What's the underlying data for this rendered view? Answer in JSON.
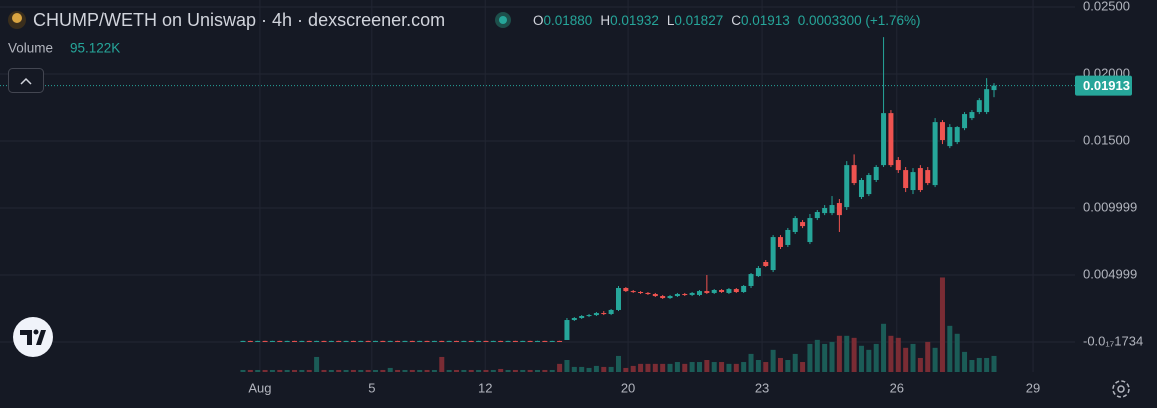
{
  "chart_data": {
    "type": "candlestick",
    "title": "CHUMP/WETH on Uniswap · 4h · dexscreener.com",
    "legend_ohlc": [
      {
        "label": "O",
        "value": "0.01880"
      },
      {
        "label": "H",
        "value": "0.01932"
      },
      {
        "label": "L",
        "value": "0.01827"
      },
      {
        "label": "C",
        "value": "0.01913"
      }
    ],
    "change": "0.0003300 (+1.76%)",
    "volume_label": "Volume",
    "volume_value": "95.122K",
    "up_color": "#26a69a",
    "down_color": "#ef5350",
    "volume_up_color": "#1b5c57",
    "volume_down_color": "#7a2c34",
    "grid": true,
    "x": [
      0,
      1,
      2,
      3,
      4,
      5,
      6,
      7,
      8,
      9,
      10,
      11,
      12,
      13,
      14,
      15,
      16,
      17,
      18,
      19,
      20,
      21,
      22,
      23,
      24,
      25,
      26,
      27,
      28,
      29,
      30,
      31,
      32,
      33,
      34,
      35,
      36,
      37,
      38,
      39,
      40,
      41,
      42,
      43,
      44,
      45,
      46,
      47,
      48,
      49,
      50,
      51,
      52,
      53,
      54,
      55,
      56,
      57,
      58,
      59,
      60,
      61,
      62,
      63,
      64,
      65,
      66,
      67,
      68,
      69,
      70,
      71,
      72,
      73,
      74,
      75,
      76,
      77,
      78,
      79,
      80,
      81,
      82,
      83,
      84,
      85,
      86,
      87,
      88,
      89,
      90,
      91,
      92,
      93,
      94,
      95,
      96,
      97,
      98,
      99,
      100,
      101,
      102
    ],
    "open": [
      7e-05,
      8e-05,
      7e-05,
      8e-05,
      7e-05,
      8e-05,
      7e-05,
      8e-05,
      7e-05,
      8e-05,
      7e-05,
      8e-05,
      7e-05,
      8e-05,
      7e-05,
      8e-05,
      7e-05,
      8e-05,
      7e-05,
      8e-05,
      7e-05,
      8e-05,
      7e-05,
      8e-05,
      7e-05,
      8e-05,
      7e-05,
      8e-05,
      7e-05,
      8e-05,
      7e-05,
      8e-05,
      7e-05,
      8e-05,
      7e-05,
      8e-05,
      7e-05,
      8e-05,
      7e-05,
      8e-05,
      7e-05,
      8e-05,
      7e-05,
      8e-05,
      0.00015,
      0.00164,
      0.00179,
      0.00194,
      0.00201,
      0.00216,
      0.00209,
      0.00239,
      0.00403,
      0.0038,
      0.00373,
      0.00366,
      0.00358,
      0.00343,
      0.00328,
      0.00343,
      0.00358,
      0.00351,
      0.00351,
      0.0038,
      0.00366,
      0.00388,
      0.00366,
      0.00395,
      0.00373,
      0.00418,
      0.00492,
      0.00597,
      0.00537,
      0.00783,
      0.00724,
      0.00821,
      0.00895,
      0.00746,
      0.00925,
      0.00962,
      0.00962,
      0.01037,
      0.01007,
      0.0132,
      0.01082,
      0.01104,
      0.01209,
      0.0132,
      0.01708,
      0.01358,
      0.01283,
      0.01134,
      0.01298,
      0.01283,
      0.01171,
      0.01641,
      0.01462,
      0.01492,
      0.01596,
      0.01671,
      0.01716,
      0.01716,
      0.0188
    ],
    "high": [
      9e-05,
      9e-05,
      9e-05,
      9e-05,
      9e-05,
      9e-05,
      9e-05,
      9e-05,
      9e-05,
      9e-05,
      9e-05,
      9e-05,
      9e-05,
      9e-05,
      9e-05,
      9e-05,
      9e-05,
      9e-05,
      9e-05,
      9e-05,
      9e-05,
      9e-05,
      9e-05,
      9e-05,
      9e-05,
      9e-05,
      9e-05,
      9e-05,
      9e-05,
      9e-05,
      9e-05,
      9e-05,
      9e-05,
      9e-05,
      9e-05,
      9e-05,
      9e-05,
      9e-05,
      9e-05,
      9e-05,
      9e-05,
      9e-05,
      9e-05,
      9e-05,
      0.00179,
      0.00186,
      0.00201,
      0.00209,
      0.00224,
      0.00231,
      0.00246,
      0.00418,
      0.0041,
      0.00388,
      0.0038,
      0.00373,
      0.00366,
      0.00351,
      0.00351,
      0.00366,
      0.00366,
      0.00373,
      0.00388,
      0.005,
      0.00395,
      0.00395,
      0.00403,
      0.00403,
      0.00425,
      0.00515,
      0.00567,
      0.00612,
      0.00798,
      0.00798,
      0.00851,
      0.0094,
      0.0091,
      0.00955,
      0.00985,
      0.01022,
      0.01089,
      0.01067,
      0.0135,
      0.014,
      0.01224,
      0.01261,
      0.0132,
      0.02275,
      0.01731,
      0.0138,
      0.01306,
      0.01298,
      0.0132,
      0.01306,
      0.01671,
      0.01656,
      0.01626,
      0.01611,
      0.01716,
      0.01731,
      0.0182,
      0.01969,
      0.01932
    ],
    "low": [
      6e-05,
      6e-05,
      6e-05,
      6e-05,
      6e-05,
      6e-05,
      6e-05,
      6e-05,
      6e-05,
      6e-05,
      6e-05,
      6e-05,
      6e-05,
      6e-05,
      6e-05,
      6e-05,
      6e-05,
      6e-05,
      6e-05,
      6e-05,
      6e-05,
      6e-05,
      6e-05,
      6e-05,
      6e-05,
      6e-05,
      6e-05,
      6e-05,
      6e-05,
      6e-05,
      6e-05,
      6e-05,
      6e-05,
      6e-05,
      6e-05,
      6e-05,
      6e-05,
      6e-05,
      6e-05,
      6e-05,
      6e-05,
      6e-05,
      6e-05,
      6e-05,
      0.00015,
      0.00157,
      0.00172,
      0.00186,
      0.00194,
      0.00201,
      0.00201,
      0.00231,
      0.00373,
      0.00366,
      0.00358,
      0.00351,
      0.00336,
      0.00321,
      0.00321,
      0.00336,
      0.00343,
      0.00343,
      0.00343,
      0.00358,
      0.00358,
      0.00366,
      0.00358,
      0.00366,
      0.00366,
      0.00403,
      0.00485,
      0.0056,
      0.00522,
      0.00694,
      0.00709,
      0.00806,
      0.0085,
      0.00731,
      0.0091,
      0.00947,
      0.00947,
      0.00821,
      0.00985,
      0.01171,
      0.01067,
      0.01089,
      0.01194,
      0.01306,
      0.01306,
      0.01261,
      0.01119,
      0.01104,
      0.01119,
      0.01171,
      0.01156,
      0.01477,
      0.01447,
      0.01477,
      0.01581,
      0.01656,
      0.01701,
      0.01701,
      0.01827
    ],
    "close": [
      8e-05,
      7e-05,
      8e-05,
      7e-05,
      8e-05,
      7e-05,
      8e-05,
      7e-05,
      8e-05,
      7e-05,
      8e-05,
      7e-05,
      8e-05,
      7e-05,
      8e-05,
      7e-05,
      8e-05,
      7e-05,
      8e-05,
      7e-05,
      8e-05,
      7e-05,
      8e-05,
      7e-05,
      8e-05,
      7e-05,
      8e-05,
      7e-05,
      8e-05,
      7e-05,
      8e-05,
      7e-05,
      8e-05,
      7e-05,
      8e-05,
      7e-05,
      8e-05,
      7e-05,
      8e-05,
      7e-05,
      8e-05,
      7e-05,
      8e-05,
      7e-05,
      0.00164,
      0.00179,
      0.00194,
      0.00201,
      0.00216,
      0.00209,
      0.00239,
      0.00403,
      0.0038,
      0.00373,
      0.00366,
      0.00358,
      0.00343,
      0.00328,
      0.00343,
      0.00358,
      0.00351,
      0.00366,
      0.0038,
      0.00366,
      0.00388,
      0.00373,
      0.00395,
      0.00373,
      0.00418,
      0.00507,
      0.00552,
      0.00567,
      0.00783,
      0.00709,
      0.00836,
      0.00925,
      0.00865,
      0.00925,
      0.0097,
      0.01,
      0.01022,
      0.00947,
      0.0132,
      0.01186,
      0.01209,
      0.01246,
      0.01306,
      0.01708,
      0.0132,
      0.01283,
      0.01149,
      0.01268,
      0.01134,
      0.01186,
      0.01641,
      0.01507,
      0.01604,
      0.01604,
      0.01701,
      0.01716,
      0.01805,
      0.01887,
      0.01913
    ],
    "volume": [
      12000,
      12000,
      12000,
      12000,
      12000,
      12000,
      12000,
      12000,
      12000,
      12000,
      89000,
      12000,
      12000,
      12000,
      12000,
      12000,
      12000,
      12000,
      12000,
      12000,
      24000,
      12000,
      12000,
      12000,
      12000,
      12000,
      12000,
      89000,
      12000,
      12000,
      12000,
      12000,
      12000,
      12000,
      12000,
      18000,
      12000,
      12000,
      12000,
      12000,
      12000,
      12000,
      12000,
      48000,
      71000,
      30000,
      30000,
      24000,
      36000,
      30000,
      30000,
      95000,
      24000,
      36000,
      48000,
      48000,
      48000,
      48000,
      48000,
      59000,
      48000,
      59000,
      59000,
      71000,
      59000,
      59000,
      48000,
      48000,
      59000,
      107000,
      71000,
      59000,
      131000,
      83000,
      71000,
      107000,
      59000,
      166000,
      190000,
      166000,
      178000,
      214000,
      214000,
      202000,
      155000,
      131000,
      166000,
      285000,
      214000,
      202000,
      143000,
      166000,
      83000,
      178000,
      143000,
      559000,
      273000,
      226000,
      119000,
      71000,
      83000,
      83000,
      95122
    ],
    "xlim": [
      -33,
      113
    ],
    "xticks": [
      {
        "value": 2.3,
        "label": "Aug"
      },
      {
        "value": 17.5,
        "label": "5"
      },
      {
        "value": 32.9,
        "label": "12"
      },
      {
        "value": 52.3,
        "label": "20"
      },
      {
        "value": 70.5,
        "label": "23"
      },
      {
        "value": 88.8,
        "label": "26"
      },
      {
        "value": 107.3,
        "label": "29"
      }
    ],
    "ylim": [
      -0.002239,
      0.025522
    ],
    "yticks": [
      {
        "value": -1.734e-18,
        "label": "-0.0₁₇1734"
      },
      {
        "value": 0.004999,
        "label": "0.004999"
      },
      {
        "value": 0.009999,
        "label": "0.009999"
      },
      {
        "value": 0.015,
        "label": "0.01500"
      },
      {
        "value": 0.02,
        "label": "0.02000"
      },
      {
        "value": 0.025,
        "label": "0.02500"
      }
    ],
    "y2lim": [
      0,
      2200000
    ]
  }
}
